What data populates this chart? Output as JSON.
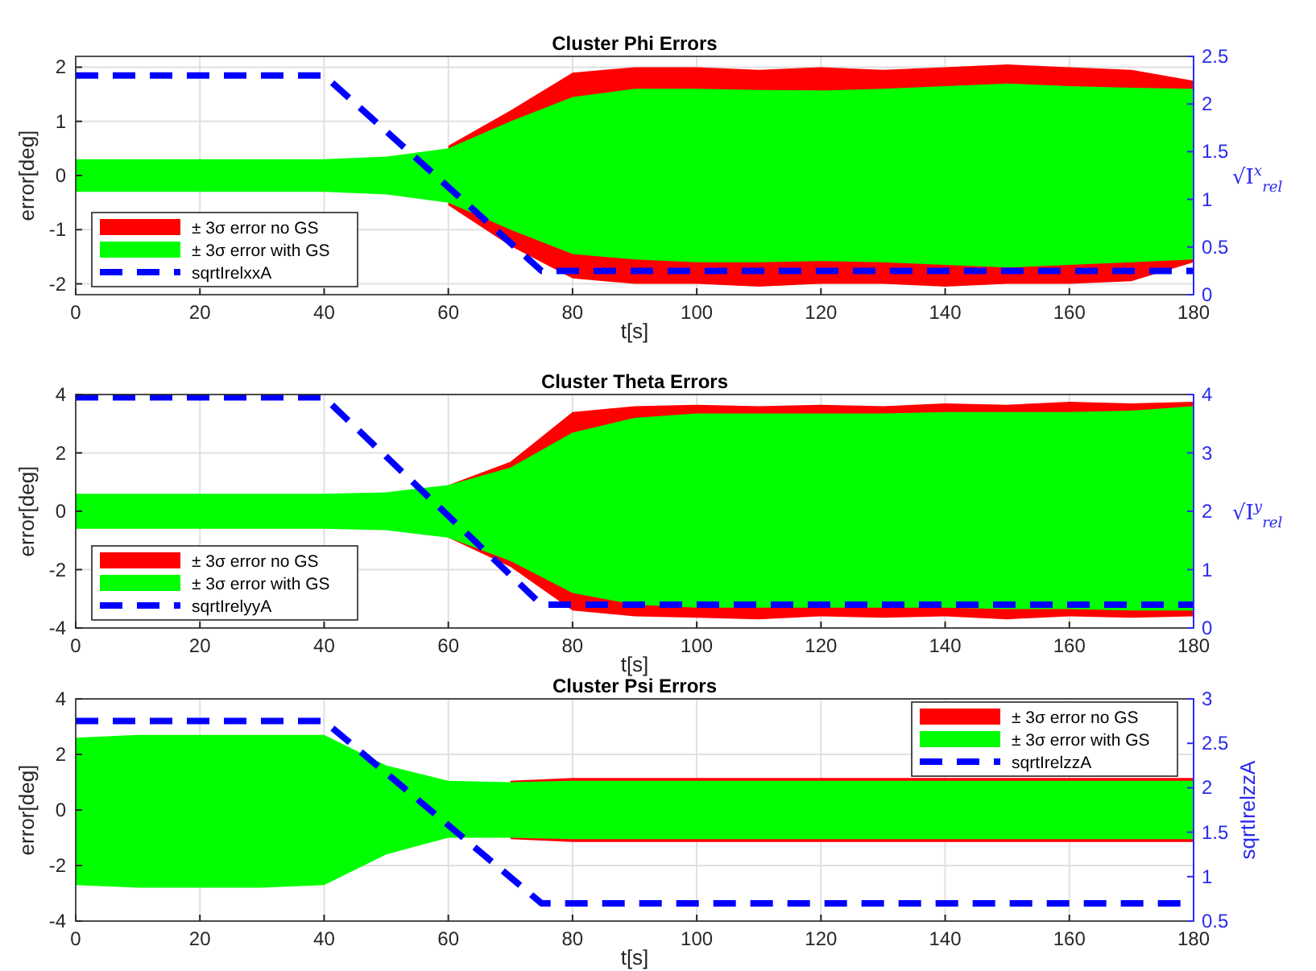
{
  "chart_data": [
    {
      "type": "area",
      "title": "Cluster Phi Errors",
      "xlabel": "t[s]",
      "ylabel": "error[deg]",
      "y2label": "√I$^{x}$$_{rel}$",
      "x": [
        0,
        10,
        20,
        30,
        40,
        50,
        60,
        70,
        80,
        90,
        100,
        110,
        120,
        130,
        140,
        150,
        160,
        170,
        180
      ],
      "series": [
        {
          "name": "± 3σ error no GS",
          "color": "#ff0000",
          "values": [
            null,
            null,
            null,
            null,
            null,
            null,
            0.55,
            1.2,
            1.9,
            2.0,
            2.0,
            1.95,
            2.0,
            1.95,
            2.0,
            2.05,
            2.0,
            1.95,
            1.75
          ]
        },
        {
          "name": "± 3σ error with GS",
          "color": "#00ff00",
          "values": [
            0.3,
            0.3,
            0.3,
            0.3,
            0.3,
            0.35,
            0.5,
            1.0,
            1.45,
            1.6,
            1.6,
            1.58,
            1.57,
            1.6,
            1.65,
            1.7,
            1.65,
            1.62,
            1.6
          ]
        },
        {
          "name": "sqrtIrelxxA",
          "type": "line",
          "axis": "y2",
          "line_style": "dashed",
          "color": "#0000ff",
          "x": [
            0,
            40,
            75,
            180
          ],
          "values": [
            2.3,
            2.3,
            0.25,
            0.25
          ]
        },
        {
          "color": "#ff0000",
          "values": [
            null,
            null,
            null,
            null,
            null,
            null,
            -0.55,
            -1.3,
            -1.9,
            -2.0,
            -2.0,
            -2.05,
            -2.0,
            -2.0,
            -2.05,
            -2.0,
            -2.0,
            -1.95,
            -1.6
          ]
        },
        {
          "color": "#00ff00",
          "values": [
            -0.3,
            -0.3,
            -0.3,
            -0.3,
            -0.3,
            -0.35,
            -0.5,
            -1.0,
            -1.45,
            -1.55,
            -1.6,
            -1.6,
            -1.58,
            -1.6,
            -1.65,
            -1.7,
            -1.65,
            -1.6,
            -1.55
          ]
        }
      ],
      "xlim": [
        0,
        180
      ],
      "xticks": [
        0,
        20,
        40,
        60,
        80,
        100,
        120,
        140,
        160,
        180
      ],
      "ylim": [
        -2.2,
        2.2
      ],
      "yticks": [
        -2,
        -1,
        0,
        1,
        2
      ],
      "y2lim": [
        0,
        2.5
      ],
      "y2ticks": [
        0,
        0.5,
        1,
        1.5,
        2,
        2.5
      ],
      "grid": true,
      "legend": "bottom left"
    },
    {
      "type": "area",
      "title": "Cluster Theta Errors",
      "xlabel": "t[s]",
      "ylabel": "error[deg]",
      "y2label": "√I$^{y}$$_{rel}$",
      "x": [
        0,
        10,
        20,
        30,
        40,
        50,
        60,
        70,
        80,
        90,
        100,
        110,
        120,
        130,
        140,
        150,
        160,
        170,
        180
      ],
      "series": [
        {
          "name": "± 3σ error no GS",
          "color": "#ff0000",
          "values": [
            null,
            null,
            null,
            null,
            null,
            null,
            0.9,
            1.7,
            3.4,
            3.6,
            3.65,
            3.6,
            3.65,
            3.6,
            3.7,
            3.65,
            3.75,
            3.7,
            3.75
          ]
        },
        {
          "name": "± 3σ error with GS",
          "color": "#00ff00",
          "values": [
            0.6,
            0.6,
            0.6,
            0.6,
            0.6,
            0.65,
            0.9,
            1.5,
            2.7,
            3.2,
            3.35,
            3.35,
            3.35,
            3.35,
            3.4,
            3.4,
            3.4,
            3.45,
            3.6
          ]
        },
        {
          "name": "sqrtIrelyyA",
          "type": "line",
          "axis": "y2",
          "line_style": "dashed",
          "color": "#0000ff",
          "x": [
            0,
            40,
            75,
            180
          ],
          "values": [
            3.95,
            3.95,
            0.4,
            0.4
          ]
        },
        {
          "color": "#ff0000",
          "values": [
            null,
            null,
            null,
            null,
            null,
            null,
            -0.9,
            -1.9,
            -3.4,
            -3.6,
            -3.65,
            -3.7,
            -3.6,
            -3.65,
            -3.6,
            -3.7,
            -3.6,
            -3.65,
            -3.6
          ]
        },
        {
          "color": "#00ff00",
          "values": [
            -0.6,
            -0.6,
            -0.6,
            -0.6,
            -0.6,
            -0.65,
            -0.9,
            -1.7,
            -2.8,
            -3.2,
            -3.3,
            -3.3,
            -3.3,
            -3.3,
            -3.3,
            -3.35,
            -3.35,
            -3.4,
            -3.4
          ]
        }
      ],
      "xlim": [
        0,
        180
      ],
      "xticks": [
        0,
        20,
        40,
        60,
        80,
        100,
        120,
        140,
        160,
        180
      ],
      "ylim": [
        -4,
        4
      ],
      "yticks": [
        -4,
        -2,
        0,
        2,
        4
      ],
      "y2lim": [
        0,
        4
      ],
      "y2ticks": [
        0,
        1,
        2,
        3,
        4
      ],
      "grid": true,
      "legend": "bottom left"
    },
    {
      "type": "area",
      "title": "Cluster Psi Errors",
      "xlabel": "t[s]",
      "ylabel": "error[deg]",
      "y2label": "sqrtIrelzzA",
      "x": [
        0,
        10,
        20,
        30,
        40,
        50,
        60,
        70,
        80,
        90,
        100,
        110,
        120,
        130,
        140,
        150,
        160,
        170,
        180
      ],
      "series": [
        {
          "name": "± 3σ error no GS",
          "color": "#ff0000",
          "values": [
            null,
            null,
            null,
            null,
            null,
            null,
            null,
            1.05,
            1.15,
            1.15,
            1.15,
            1.15,
            1.15,
            1.15,
            1.15,
            1.15,
            1.15,
            1.15,
            1.15
          ]
        },
        {
          "name": "± 3σ error with GS",
          "color": "#00ff00",
          "values": [
            2.6,
            2.7,
            2.7,
            2.7,
            2.7,
            1.6,
            1.05,
            1.0,
            1.05,
            1.05,
            1.05,
            1.05,
            1.05,
            1.05,
            1.05,
            1.05,
            1.05,
            1.05,
            1.05
          ]
        },
        {
          "name": "sqrtIrelzzA",
          "type": "line",
          "axis": "y2",
          "line_style": "dashed",
          "color": "#0000ff",
          "x": [
            0,
            40,
            75,
            180
          ],
          "values": [
            2.75,
            2.75,
            0.7,
            0.7
          ]
        },
        {
          "color": "#ff0000",
          "values": [
            null,
            null,
            null,
            null,
            null,
            null,
            null,
            -1.05,
            -1.15,
            -1.15,
            -1.15,
            -1.15,
            -1.15,
            -1.15,
            -1.15,
            -1.15,
            -1.15,
            -1.15,
            -1.15
          ]
        },
        {
          "color": "#00ff00",
          "values": [
            -2.7,
            -2.8,
            -2.8,
            -2.8,
            -2.7,
            -1.6,
            -1.0,
            -1.0,
            -1.05,
            -1.05,
            -1.05,
            -1.05,
            -1.05,
            -1.05,
            -1.05,
            -1.05,
            -1.05,
            -1.05,
            -1.05
          ]
        }
      ],
      "xlim": [
        0,
        180
      ],
      "xticks": [
        0,
        20,
        40,
        60,
        80,
        100,
        120,
        140,
        160,
        180
      ],
      "ylim": [
        -4,
        4
      ],
      "yticks": [
        -4,
        -2,
        0,
        2,
        4
      ],
      "y2lim": [
        0.5,
        3
      ],
      "y2ticks": [
        0.5,
        1,
        1.5,
        2,
        2.5,
        3
      ],
      "grid": true,
      "legend": "top right"
    }
  ]
}
